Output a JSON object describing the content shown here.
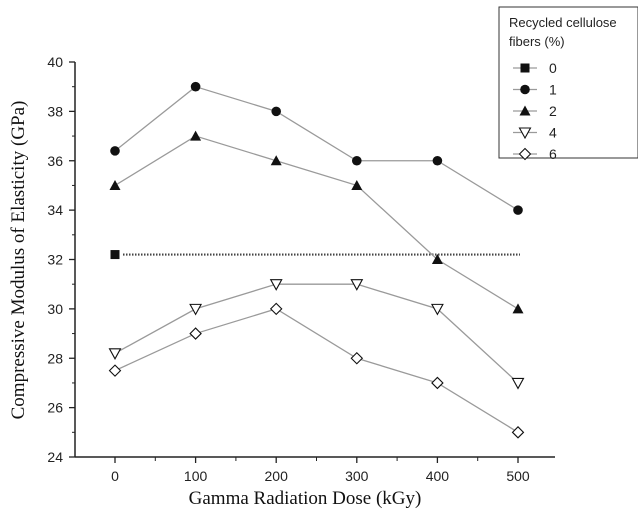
{
  "chart_data": {
    "type": "line",
    "xlabel": "Gamma Radiation Dose (kGy)",
    "ylabel": "Compressive Modulus of Elasticity  (GPa)",
    "xlim": [
      0,
      500
    ],
    "ylim": [
      24,
      40
    ],
    "xticks": [
      0,
      100,
      200,
      300,
      400,
      500
    ],
    "yticks": [
      24,
      26,
      28,
      30,
      32,
      34,
      36,
      38,
      40
    ],
    "grid": false,
    "legend": {
      "title_lines": [
        "Recycled cellulose",
        "fibers (%)"
      ],
      "placement": "top-right"
    },
    "x": [
      0,
      100,
      200,
      300,
      400,
      500
    ],
    "series": [
      {
        "name": "0",
        "marker": "square",
        "style": "dotted",
        "values": [
          32.2,
          32.2,
          32.2,
          32.2,
          32.2,
          32.2
        ],
        "marker_points": [
          0
        ]
      },
      {
        "name": "1",
        "marker": "circle",
        "style": "solid",
        "values": [
          36.4,
          39,
          38,
          36,
          36,
          34
        ]
      },
      {
        "name": "2",
        "marker": "triangle-up",
        "style": "solid",
        "values": [
          35,
          37,
          36,
          35,
          32,
          30
        ]
      },
      {
        "name": "4",
        "marker": "triangle-down-open",
        "style": "solid",
        "values": [
          28.2,
          30,
          31,
          31,
          30,
          27
        ]
      },
      {
        "name": "6",
        "marker": "diamond-open",
        "style": "solid",
        "values": [
          27.5,
          29,
          30,
          28,
          27,
          25
        ]
      }
    ]
  },
  "colors": {
    "line": "#9a9a9a",
    "marker": "#111111",
    "axis": "#222222"
  }
}
